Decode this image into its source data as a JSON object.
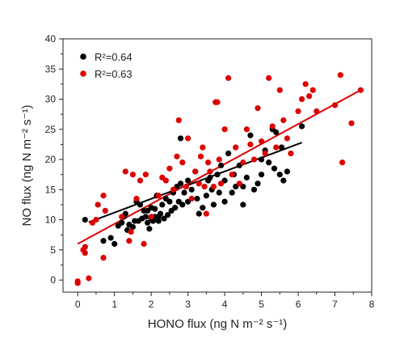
{
  "chart_data": {
    "type": "scatter",
    "title": "",
    "xlabel": "HONO flux (ng N m⁻² s⁻¹)",
    "ylabel": "NO flux (ng N m⁻² s⁻¹)",
    "xlim": [
      -0.4,
      8
    ],
    "ylim": [
      -2,
      40
    ],
    "x_ticks": [
      "0",
      "1",
      "2",
      "3",
      "4",
      "5",
      "6",
      "7",
      "8"
    ],
    "y_ticks": [
      "0",
      "5",
      "10",
      "15",
      "20",
      "25",
      "30",
      "35",
      "40"
    ],
    "legend_position": "top-left",
    "series": [
      {
        "name": "R²=0.64",
        "color": "#000000",
        "fit": {
          "x": [
            0.3,
            6.1
          ],
          "y": [
            9.6,
            22.8
          ]
        },
        "points": [
          [
            0.2,
            10
          ],
          [
            0.7,
            6.5
          ],
          [
            0.9,
            7.0
          ],
          [
            1.0,
            6.0
          ],
          [
            1.1,
            9.0
          ],
          [
            1.2,
            9.5
          ],
          [
            1.25,
            10.5
          ],
          [
            1.3,
            11.0
          ],
          [
            1.35,
            8.3
          ],
          [
            1.4,
            9.2
          ],
          [
            1.5,
            8.8
          ],
          [
            1.55,
            9.8
          ],
          [
            1.6,
            13.0
          ],
          [
            1.65,
            9.8
          ],
          [
            1.7,
            12.5
          ],
          [
            1.75,
            10.2
          ],
          [
            1.8,
            11.5
          ],
          [
            1.85,
            10.5
          ],
          [
            1.9,
            9.5
          ],
          [
            1.9,
            11.5
          ],
          [
            1.95,
            8.5
          ],
          [
            2.0,
            12.0
          ],
          [
            2.0,
            10.2
          ],
          [
            2.05,
            9.8
          ],
          [
            2.1,
            10.5
          ],
          [
            2.1,
            11.8
          ],
          [
            2.15,
            14.0
          ],
          [
            2.2,
            9.8
          ],
          [
            2.2,
            10.5
          ],
          [
            2.25,
            11.0
          ],
          [
            2.3,
            12.5
          ],
          [
            2.35,
            10.2
          ],
          [
            2.4,
            13.5
          ],
          [
            2.45,
            10.8
          ],
          [
            2.5,
            13.0
          ],
          [
            2.55,
            11.5
          ],
          [
            2.6,
            14.5
          ],
          [
            2.65,
            12.0
          ],
          [
            2.7,
            15.5
          ],
          [
            2.75,
            13.0
          ],
          [
            2.8,
            16.0
          ],
          [
            2.8,
            23.5
          ],
          [
            2.85,
            12.5
          ],
          [
            2.9,
            14.5
          ],
          [
            3.0,
            13.0
          ],
          [
            3.0,
            16.5
          ],
          [
            3.1,
            15.0
          ],
          [
            3.2,
            18.0
          ],
          [
            3.25,
            13.5
          ],
          [
            3.3,
            11.0
          ],
          [
            3.4,
            12.0
          ],
          [
            3.5,
            14.0
          ],
          [
            3.55,
            16.5
          ],
          [
            3.6,
            17.0
          ],
          [
            3.65,
            15.0
          ],
          [
            3.7,
            12.5
          ],
          [
            3.8,
            17.5
          ],
          [
            3.85,
            14.5
          ],
          [
            3.9,
            19.0
          ],
          [
            4.0,
            13.0
          ],
          [
            4.0,
            16.5
          ],
          [
            4.1,
            21.0
          ],
          [
            4.2,
            14.5
          ],
          [
            4.25,
            17.5
          ],
          [
            4.3,
            15.5
          ],
          [
            4.4,
            19.0
          ],
          [
            4.5,
            12.5
          ],
          [
            4.5,
            15.5
          ],
          [
            4.6,
            17.0
          ],
          [
            4.7,
            24.0
          ],
          [
            4.8,
            15.0
          ],
          [
            4.9,
            16.0
          ],
          [
            5.0,
            20.0
          ],
          [
            5.0,
            17.5
          ],
          [
            5.1,
            21.5
          ],
          [
            5.2,
            19.5
          ],
          [
            5.3,
            25.0
          ],
          [
            5.35,
            18.5
          ],
          [
            5.4,
            24.5
          ],
          [
            5.5,
            17.5
          ],
          [
            5.55,
            22.0
          ],
          [
            5.6,
            16.5
          ],
          [
            5.7,
            18.0
          ],
          [
            6.1,
            25.5
          ]
        ]
      },
      {
        "name": "R²=0.63",
        "color": "#dd0000",
        "fit": {
          "x": [
            0.0,
            7.7
          ],
          "y": [
            6.0,
            31.5
          ]
        },
        "points": [
          [
            0.0,
            -0.2
          ],
          [
            0.0,
            -0.5
          ],
          [
            0.15,
            5.0
          ],
          [
            0.2,
            4.5
          ],
          [
            0.2,
            5.5
          ],
          [
            0.3,
            0.3
          ],
          [
            0.4,
            9.5
          ],
          [
            0.5,
            10.0
          ],
          [
            0.55,
            12.5
          ],
          [
            0.7,
            14.0
          ],
          [
            0.7,
            3.7
          ],
          [
            0.75,
            11.5
          ],
          [
            1.2,
            10.5
          ],
          [
            1.3,
            18.0
          ],
          [
            1.4,
            6.5
          ],
          [
            1.45,
            8.0
          ],
          [
            1.5,
            17.5
          ],
          [
            1.6,
            13.5
          ],
          [
            1.7,
            16.5
          ],
          [
            1.8,
            6.0
          ],
          [
            1.85,
            17.5
          ],
          [
            2.0,
            10.5
          ],
          [
            2.2,
            14.0
          ],
          [
            2.3,
            17.0
          ],
          [
            2.4,
            16.5
          ],
          [
            2.5,
            18.5
          ],
          [
            2.6,
            15.0
          ],
          [
            2.7,
            20.5
          ],
          [
            2.75,
            26.5
          ],
          [
            2.85,
            19.5
          ],
          [
            2.95,
            15.5
          ],
          [
            3.0,
            23.5
          ],
          [
            3.1,
            13.5
          ],
          [
            3.2,
            18.0
          ],
          [
            3.3,
            16.0
          ],
          [
            3.35,
            20.5
          ],
          [
            3.4,
            22.0
          ],
          [
            3.45,
            15.5
          ],
          [
            3.5,
            11.0
          ],
          [
            3.55,
            19.5
          ],
          [
            3.6,
            18.0
          ],
          [
            3.7,
            15.5
          ],
          [
            3.75,
            29.5
          ],
          [
            3.8,
            29.5
          ],
          [
            3.85,
            20.0
          ],
          [
            3.9,
            16.0
          ],
          [
            4.0,
            25.0
          ],
          [
            4.1,
            33.5
          ],
          [
            4.2,
            17.5
          ],
          [
            4.3,
            22.0
          ],
          [
            4.4,
            16.0
          ],
          [
            4.5,
            19.5
          ],
          [
            4.6,
            25.0
          ],
          [
            4.7,
            22.5
          ],
          [
            4.8,
            20.0
          ],
          [
            4.9,
            28.5
          ],
          [
            5.0,
            23.0
          ],
          [
            5.1,
            21.0
          ],
          [
            5.2,
            33.5
          ],
          [
            5.3,
            25.5
          ],
          [
            5.4,
            22.0
          ],
          [
            5.5,
            31.5
          ],
          [
            5.6,
            26.5
          ],
          [
            5.7,
            23.5
          ],
          [
            5.8,
            21.0
          ],
          [
            6.0,
            28.0
          ],
          [
            6.1,
            30.0
          ],
          [
            6.2,
            32.5
          ],
          [
            6.3,
            30.5
          ],
          [
            6.4,
            31.5
          ],
          [
            6.5,
            28.0
          ],
          [
            7.0,
            29.0
          ],
          [
            7.15,
            34.0
          ],
          [
            7.2,
            19.5
          ],
          [
            7.45,
            26.0
          ],
          [
            7.7,
            31.5
          ]
        ]
      }
    ]
  }
}
